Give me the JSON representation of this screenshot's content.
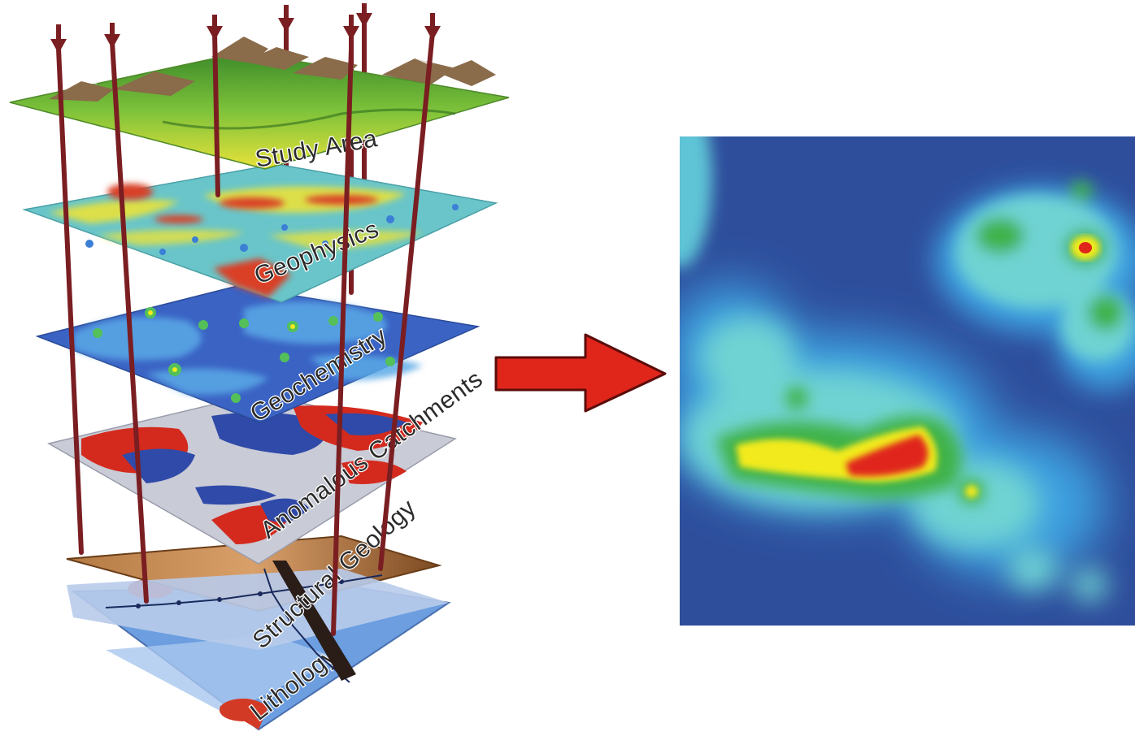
{
  "layers": [
    {
      "id": "study-area",
      "label": "Study Area"
    },
    {
      "id": "geophysics",
      "label": "Geophysics"
    },
    {
      "id": "geochemistry",
      "label": "Geochemistry"
    },
    {
      "id": "anomalous-catchments",
      "label": "Anomalous Catchments"
    },
    {
      "id": "structural-geology",
      "label": "Structural Geology"
    },
    {
      "id": "lithology",
      "label": "Lithology"
    }
  ],
  "colors": {
    "drill_rod": "#7a1e22",
    "arrow_fill": "#e0251b",
    "arrow_outline": "#5a0d0a",
    "map_background": "#2e4e9c",
    "map_low": "#5ec4d6",
    "map_mid": "#3fb24a",
    "map_high": "#f2ea1c",
    "map_peak": "#e0251b"
  },
  "icons": {
    "stack": "layer-stack-icon",
    "arrow": "right-arrow-icon",
    "result": "prospectivity-map-icon"
  }
}
